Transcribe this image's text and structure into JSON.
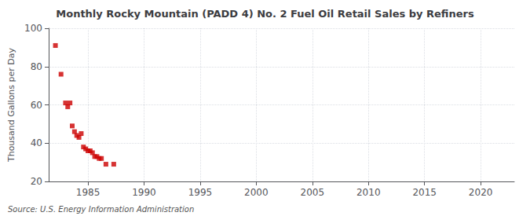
{
  "chart_data": {
    "type": "scatter",
    "title": "Monthly Rocky Mountain (PADD 4) No. 2 Fuel Oil Retail Sales by Refiners",
    "ylabel": "Thousand Gallons per Day",
    "annotations": [
      "Source: U.S. Energy Information Administration"
    ],
    "x": [
      1982.1,
      1982.6,
      1983.0,
      1983.2,
      1983.4,
      1983.6,
      1983.8,
      1984.0,
      1984.2,
      1984.4,
      1984.6,
      1984.8,
      1985.0,
      1985.2,
      1985.4,
      1985.6,
      1985.8,
      1986.0,
      1986.2,
      1986.6,
      1987.3
    ],
    "values": [
      91,
      76,
      61,
      59,
      61,
      49,
      46,
      44,
      43,
      45,
      38,
      37,
      36,
      36,
      35,
      33,
      33,
      32,
      32,
      29,
      29
    ],
    "color": "#cc0000",
    "marker": "square",
    "xlim": [
      1981.5,
      2023
    ],
    "ylim": [
      20,
      100
    ],
    "xticks": [
      1985,
      1990,
      1995,
      2000,
      2005,
      2010,
      2015,
      2020
    ],
    "yticks": [
      20,
      40,
      60,
      80,
      100
    ],
    "grid": true
  }
}
